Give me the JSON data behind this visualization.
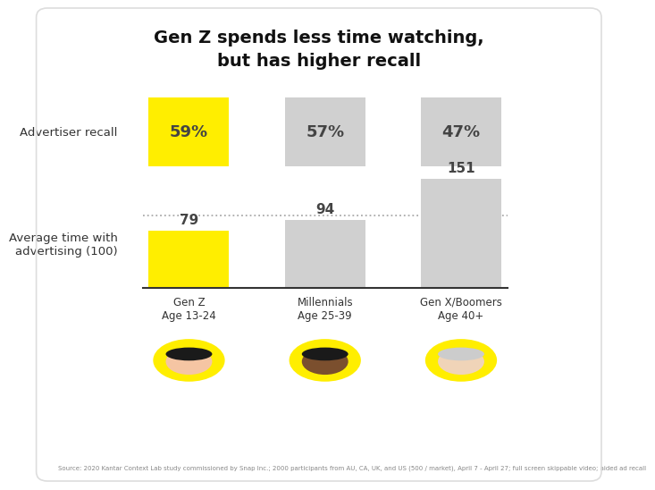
{
  "title": "Gen Z spends less time watching,\nbut has higher recall",
  "categories": [
    "Gen Z\nAge 13-24",
    "Millennials\nAge 25-39",
    "Gen X/Boomers\nAge 40+"
  ],
  "recall_values": [
    59,
    57,
    47
  ],
  "recall_labels": [
    "59%",
    "57%",
    "47%"
  ],
  "time_values": [
    79,
    94,
    151
  ],
  "time_labels": [
    "79",
    "94",
    "151"
  ],
  "recall_colors": [
    "#FFEE00",
    "#D0D0D0",
    "#D0D0D0"
  ],
  "time_colors": [
    "#FFEE00",
    "#D0D0D0",
    "#D0D0D0"
  ],
  "label_recall": "Advertiser recall",
  "label_time": "Average time with\nadvertising (100)",
  "source_text": "Source: 2020 Kantar Context Lab study commissioned by Snap Inc.; 2000 participants from AU, CA, UK, and US (500 / market), April 7 - April 27; full screen skippable video; aided ad recall",
  "background_color": "#FFFFFF",
  "dashed_line_color": "#AAAAAA",
  "baseline_color": "#333333",
  "text_color": "#333333",
  "avatar_colors": [
    "#FFEE00",
    "#FFEE00",
    "#FFEE00"
  ],
  "x_positions": [
    1.0,
    2.1,
    3.2
  ],
  "bar_width": 0.65,
  "recall_bar_bottom": 4.5,
  "recall_bar_height": 1.1,
  "time_baseline": 2.55,
  "time_max_height": 1.75,
  "time_ref_val": 151,
  "xlim": [
    -0.1,
    4.2
  ],
  "ylim": [
    0.0,
    6.8
  ]
}
